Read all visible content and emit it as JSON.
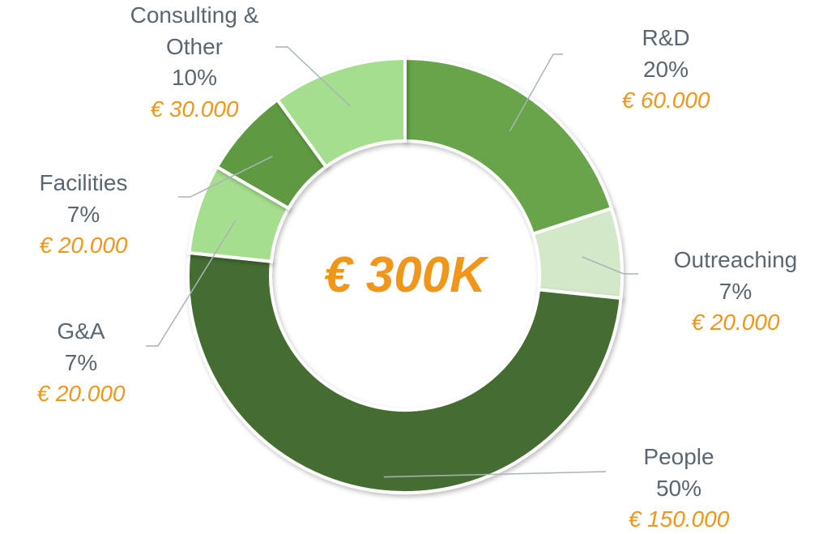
{
  "chart_data": {
    "type": "donut",
    "total_label": "€ 300K",
    "categories": [
      "R&D",
      "Outreaching",
      "People",
      "G&A",
      "Facilities",
      "Consulting & Other"
    ],
    "values": [
      60000,
      20000,
      150000,
      20000,
      20000,
      30000
    ],
    "value_labels": [
      "€ 60.000",
      "€ 20.000",
      "€ 150.000",
      "€ 20.000",
      "€ 20.000",
      "€ 30.000"
    ],
    "percent_labels": [
      "20%",
      "7%",
      "50%",
      "7%",
      "7%",
      "10%"
    ],
    "colors": [
      "#67a449",
      "#d3e8c8",
      "#446d33",
      "#a6de8f",
      "#5f9a42",
      "#a6de8f"
    ]
  }
}
